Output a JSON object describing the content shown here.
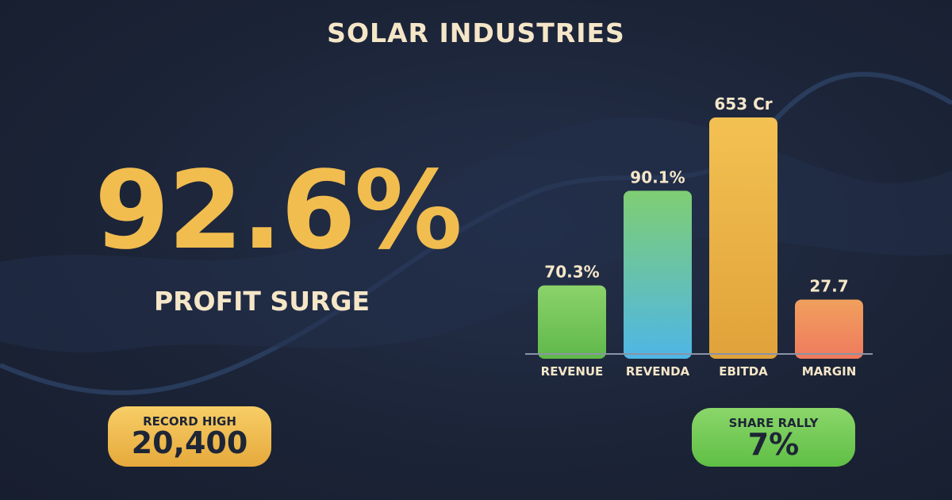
{
  "header": {
    "title": "SOLAR INDUSTRIES"
  },
  "hero": {
    "value": "92.6%",
    "label": "PROFIT SURGE"
  },
  "badges": {
    "record": {
      "label": "RECORD HIGH",
      "value": "20,400",
      "color": "#f1bd4f"
    },
    "rally": {
      "label": "SHARE RALLY",
      "value": "7%",
      "color": "#74cc55"
    }
  },
  "chart_data": {
    "type": "bar",
    "categories": [
      "REVENUE",
      "REVENDA",
      "EBITDA",
      "MARGIN"
    ],
    "value_labels": [
      "70.3%",
      "90.1%",
      "653 Cr",
      "27.7"
    ],
    "relative_heights": [
      0.29,
      0.69,
      1.0,
      0.23
    ],
    "colors": [
      [
        "#8bd36a",
        "#5fb84a"
      ],
      [
        "#7fce73",
        "#4fb6e6"
      ],
      [
        "#f3c152",
        "#e0a23a"
      ],
      [
        "#f0a05d",
        "#ef7a5e"
      ]
    ],
    "legend": "none",
    "grid": false
  }
}
